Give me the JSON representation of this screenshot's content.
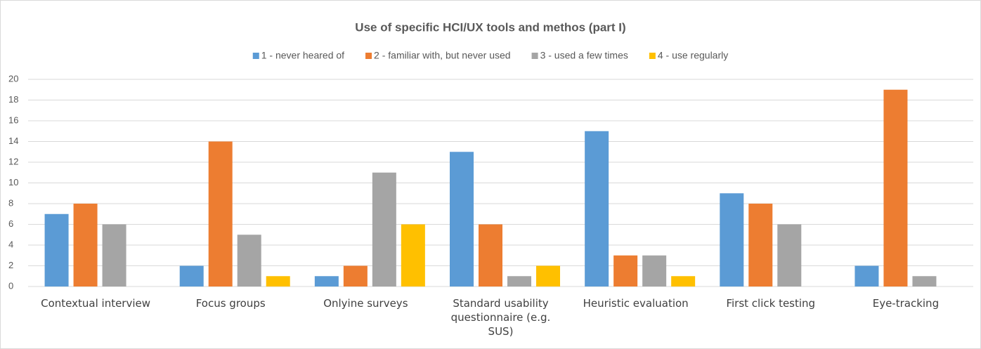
{
  "chart_data": {
    "type": "bar",
    "title": "Use of specific HCI/UX tools and methos (part I)",
    "categories": [
      "Contextual interview",
      "Focus groups",
      "Onlyine surveys",
      "Standard usability questionnaire (e.g. SUS)",
      "Heuristic evaluation",
      "First click testing",
      "Eye-tracking"
    ],
    "series": [
      {
        "name": "1 - never heared of",
        "color": "#5b9bd5",
        "values": [
          7,
          2,
          1,
          13,
          15,
          9,
          2
        ]
      },
      {
        "name": "2 - familiar with, but never used",
        "color": "#ed7d31",
        "values": [
          8,
          14,
          2,
          6,
          3,
          8,
          19
        ]
      },
      {
        "name": "3 - used a few times",
        "color": "#a5a5a5",
        "values": [
          6,
          5,
          11,
          1,
          3,
          6,
          1
        ]
      },
      {
        "name": "4 - use regularly",
        "color": "#ffc000",
        "values": [
          0,
          1,
          6,
          2,
          1,
          0,
          0
        ]
      }
    ],
    "ylim": [
      0,
      20
    ],
    "yticks": [
      0,
      2,
      4,
      6,
      8,
      10,
      12,
      14,
      16,
      18,
      20
    ],
    "grid": true,
    "legend": "top"
  }
}
